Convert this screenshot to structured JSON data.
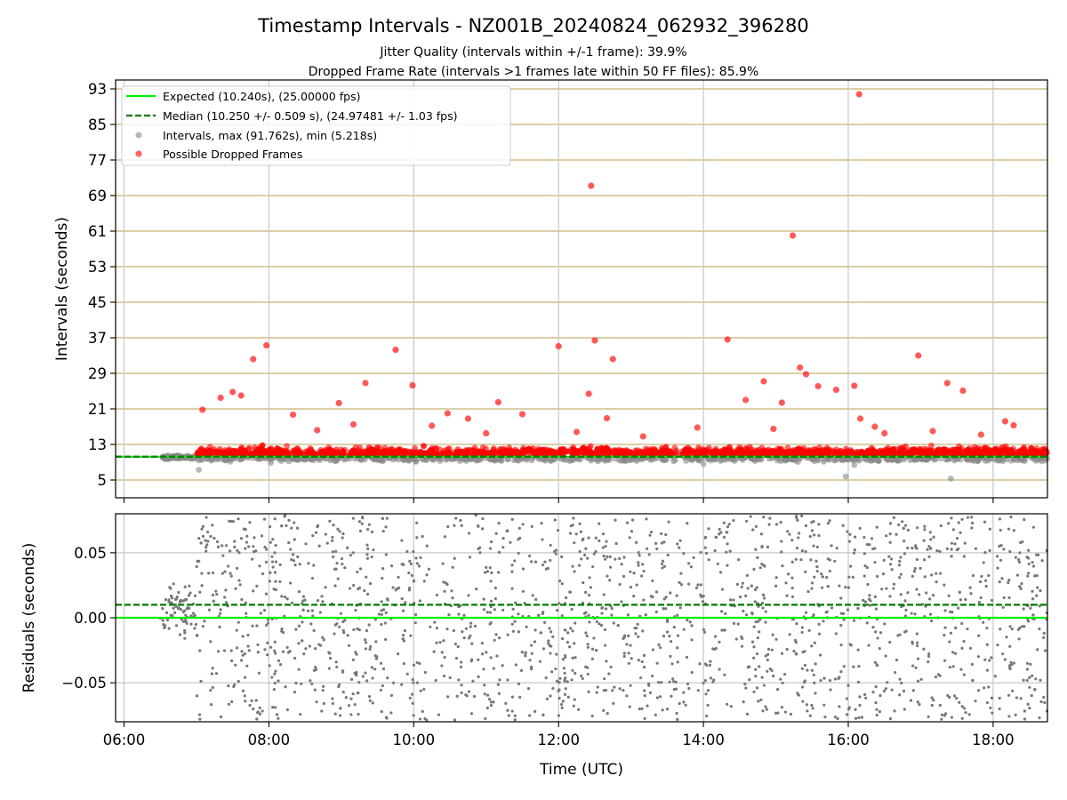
{
  "chart_data": [
    {
      "type": "scatter",
      "title": "Timestamp Intervals - NZ001B_20240824_062932_396280",
      "subtitle_lines": [
        "Jitter Quality (intervals within +/-1 frame): 39.9%",
        "Dropped Frame Rate (intervals >1 frames late within 50 FF files): 85.9%"
      ],
      "ylabel": "Intervals (seconds)",
      "xlabel": "",
      "xlim": [
        "05:53",
        "18:45"
      ],
      "ylim": [
        1,
        95
      ],
      "yticks": [
        "5",
        "13",
        "21",
        "29",
        "37",
        "45",
        "53",
        "61",
        "69",
        "77",
        "85",
        "93"
      ],
      "grid": true,
      "legend_position": "upper-left",
      "legend": [
        "Expected (10.240s), (25.00000 fps)",
        "Median (10.250 +/- 0.509 s), (24.97481 +/- 1.03 fps)",
        "Intervals, max (91.762s), min (5.218s)",
        "Possible Dropped Frames"
      ],
      "expected_value": 10.24,
      "median_value": 10.25,
      "colors": {
        "expected": "#00ee00",
        "median": "#007a00",
        "intervals": "#888888",
        "dropped": "#ff0000",
        "hgrid": "#c8b070",
        "vgrid": "#c8c8c8"
      },
      "highlighted_points": [
        {
          "x": "07:05",
          "y": 20.8
        },
        {
          "x": "07:20",
          "y": 23.5
        },
        {
          "x": "07:30",
          "y": 24.8
        },
        {
          "x": "07:37",
          "y": 24.0
        },
        {
          "x": "07:47",
          "y": 32.2
        },
        {
          "x": "07:58",
          "y": 35.3
        },
        {
          "x": "08:20",
          "y": 19.7
        },
        {
          "x": "08:58",
          "y": 22.3
        },
        {
          "x": "09:20",
          "y": 26.8
        },
        {
          "x": "09:45",
          "y": 34.3
        },
        {
          "x": "09:59",
          "y": 26.3
        },
        {
          "x": "10:28",
          "y": 20.0
        },
        {
          "x": "10:45",
          "y": 18.8
        },
        {
          "x": "11:10",
          "y": 22.5
        },
        {
          "x": "11:30",
          "y": 19.8
        },
        {
          "x": "12:00",
          "y": 35.1
        },
        {
          "x": "12:25",
          "y": 24.4
        },
        {
          "x": "12:27",
          "y": 71.2
        },
        {
          "x": "12:30",
          "y": 36.4
        },
        {
          "x": "12:45",
          "y": 32.2
        },
        {
          "x": "12:40",
          "y": 18.9
        },
        {
          "x": "14:20",
          "y": 36.6
        },
        {
          "x": "14:35",
          "y": 23.0
        },
        {
          "x": "14:50",
          "y": 27.2
        },
        {
          "x": "15:05",
          "y": 22.4
        },
        {
          "x": "15:14",
          "y": 60.0
        },
        {
          "x": "15:20",
          "y": 30.3
        },
        {
          "x": "15:25",
          "y": 28.8
        },
        {
          "x": "15:35",
          "y": 26.1
        },
        {
          "x": "15:50",
          "y": 25.3
        },
        {
          "x": "16:05",
          "y": 26.2
        },
        {
          "x": "16:09",
          "y": 91.8
        },
        {
          "x": "16:10",
          "y": 18.8
        },
        {
          "x": "16:58",
          "y": 33.0
        },
        {
          "x": "17:22",
          "y": 26.8
        },
        {
          "x": "17:35",
          "y": 25.1
        },
        {
          "x": "18:10",
          "y": 18.2
        },
        {
          "x": "18:17",
          "y": 17.3
        },
        {
          "x": "17:10",
          "y": 16.0
        },
        {
          "x": "16:30",
          "y": 15.5
        },
        {
          "x": "14:58",
          "y": 16.5
        },
        {
          "x": "13:55",
          "y": 16.8
        },
        {
          "x": "08:40",
          "y": 16.2
        },
        {
          "x": "09:10",
          "y": 17.5
        },
        {
          "x": "10:15",
          "y": 17.2
        },
        {
          "x": "11:00",
          "y": 15.5
        },
        {
          "x": "12:15",
          "y": 15.8
        },
        {
          "x": "13:10",
          "y": 14.8
        },
        {
          "x": "16:22",
          "y": 17.0
        },
        {
          "x": "17:50",
          "y": 15.2
        }
      ]
    },
    {
      "type": "scatter",
      "ylabel": "Residuals (seconds)",
      "xlabel": "Time (UTC)",
      "xlim": [
        "05:53",
        "18:45"
      ],
      "ylim": [
        -0.08,
        0.08
      ],
      "yticks": [
        "0.05",
        "0.00",
        "−0.05"
      ],
      "xticks": [
        "06:00",
        "08:00",
        "10:00",
        "12:00",
        "14:00",
        "16:00",
        "18:00"
      ],
      "zero_value": 0.0,
      "median_value": 0.01,
      "colors": {
        "expected": "#00ee00",
        "median": "#007a00",
        "points": "#777777",
        "grid": "#c8c8c8"
      }
    }
  ]
}
